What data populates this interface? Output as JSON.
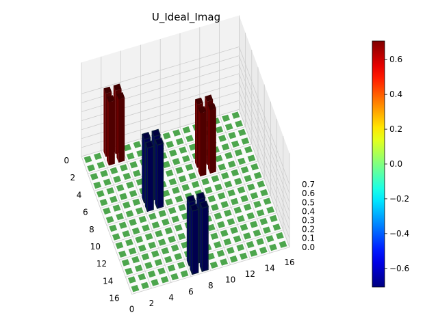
{
  "chart_data": {
    "type": "bar3d",
    "title": "U_Ideal_Imag",
    "grid_size": 16,
    "x_ticks": [
      "0",
      "2",
      "4",
      "6",
      "8",
      "10",
      "12",
      "14",
      "16"
    ],
    "y_ticks": [
      "0",
      "2",
      "4",
      "6",
      "8",
      "10",
      "12",
      "14",
      "16"
    ],
    "z_ticks": [
      "0.0",
      "0.1",
      "0.2",
      "0.3",
      "0.4",
      "0.5",
      "0.6",
      "0.7"
    ],
    "zlim": [
      0,
      0.75
    ],
    "colorbar": {
      "min": -0.707,
      "max": 0.707,
      "ticks": [
        "0.6",
        "0.4",
        "0.2",
        "0.0",
        "−0.2",
        "−0.4",
        "−0.6"
      ],
      "tick_values": [
        0.6,
        0.4,
        0.2,
        0.0,
        -0.2,
        -0.4,
        -0.6
      ],
      "colormap": "jet"
    },
    "nonzero_cells": [
      {
        "row": 0,
        "col": 2,
        "value": 0.707
      },
      {
        "row": 0,
        "col": 3,
        "value": 0.707
      },
      {
        "row": 1,
        "col": 2,
        "value": 0.707
      },
      {
        "row": 1,
        "col": 3,
        "value": 0.707
      },
      {
        "row": 4,
        "col": 10,
        "value": 0.707
      },
      {
        "row": 4,
        "col": 11,
        "value": 0.707
      },
      {
        "row": 5,
        "col": 10,
        "value": 0.707
      },
      {
        "row": 5,
        "col": 11,
        "value": 0.707
      },
      {
        "row": 6,
        "col": 4,
        "value": -0.707
      },
      {
        "row": 6,
        "col": 5,
        "value": -0.707
      },
      {
        "row": 7,
        "col": 4,
        "value": -0.707
      },
      {
        "row": 7,
        "col": 5,
        "value": -0.707
      },
      {
        "row": 14,
        "col": 6,
        "value": -0.707
      },
      {
        "row": 14,
        "col": 7,
        "value": -0.707
      },
      {
        "row": 15,
        "col": 6,
        "value": -0.707
      },
      {
        "row": 15,
        "col": 7,
        "value": -0.707
      }
    ],
    "zero_color": "#4da64d",
    "pane_color": "#f2f2f2",
    "grid_color": "#cccccc"
  }
}
